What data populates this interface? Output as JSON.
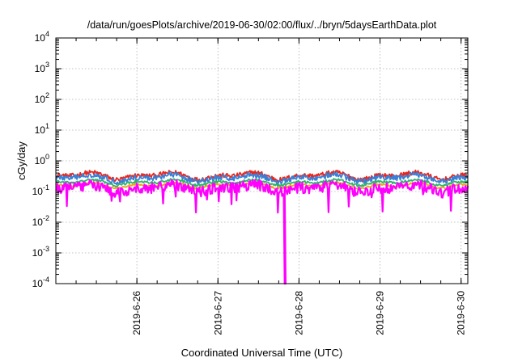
{
  "chart_data": {
    "type": "line",
    "title": "/data/run/goesPlots/archive/2019-06-30/02:00/flux/../bryn/5daysEarthData.plot",
    "xlabel": "Coordinated Universal Time (UTC)",
    "ylabel": "cGy/day",
    "yscale": "log",
    "ylim": [
      0.0001,
      10000
    ],
    "xlim": [
      "2019-06-25 00:00",
      "2019-06-30 02:00"
    ],
    "x_ticks": [
      "2019-6-26",
      "2019-6-27",
      "2019-6-28",
      "2019-6-29",
      "2019-6-30"
    ],
    "y_ticks": [
      {
        "base": "10",
        "exp": "4"
      },
      {
        "base": "10",
        "exp": "3"
      },
      {
        "base": "10",
        "exp": "2"
      },
      {
        "base": "10",
        "exp": "1"
      },
      {
        "base": "10",
        "exp": "0"
      },
      {
        "base": "10",
        "exp": "-1"
      },
      {
        "base": "10",
        "exp": "-2"
      },
      {
        "base": "10",
        "exp": "-3"
      },
      {
        "base": "10",
        "exp": "-4"
      }
    ],
    "grid": true,
    "legend": "none",
    "series": [
      {
        "color": "#e8261e",
        "baseline": 0.33,
        "daily_amplitude": 0.18,
        "noise": 0.15
      },
      {
        "color": "#3a7fd5",
        "baseline": 0.28,
        "daily_amplitude": 0.18,
        "noise": 0.18
      },
      {
        "color": "#2fb46a",
        "baseline": 0.2,
        "daily_amplitude": 0.12,
        "noise": 0.08
      },
      {
        "color": "#f0a020",
        "baseline": 0.16,
        "daily_amplitude": 0.1,
        "noise": 0.06
      },
      {
        "color": "#ff00ff",
        "baseline": 0.13,
        "daily_amplitude": 0.2,
        "noise": 0.35,
        "dropout": {
          "time": "2019-06-27 19:45",
          "value": 0.0001
        }
      }
    ]
  }
}
